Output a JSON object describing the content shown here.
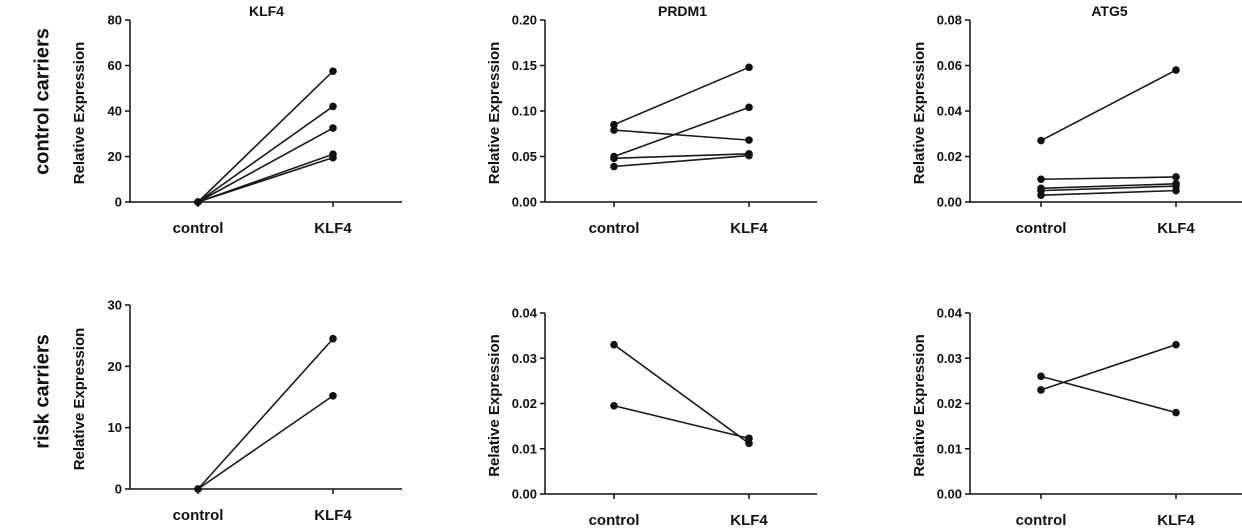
{
  "row_labels": [
    "control carriers",
    "risk carriers"
  ],
  "chart_data": [
    {
      "type": "line",
      "title": "KLF4",
      "xlabel": "",
      "ylabel": "Relative Expression",
      "categories": [
        "control",
        "KLF4"
      ],
      "ylim": [
        0,
        80
      ],
      "yticks": [
        "0",
        "20",
        "40",
        "60",
        "80"
      ],
      "series": [
        {
          "values": [
            0,
            57.5
          ]
        },
        {
          "values": [
            0,
            42
          ]
        },
        {
          "values": [
            0,
            32.5
          ]
        },
        {
          "values": [
            0,
            21
          ]
        },
        {
          "values": [
            0,
            19.5
          ]
        }
      ]
    },
    {
      "type": "line",
      "title": "PRDM1",
      "xlabel": "",
      "ylabel": "Relative Expression",
      "categories": [
        "control",
        "KLF4"
      ],
      "ylim": [
        0,
        0.2
      ],
      "yticks": [
        "0.00",
        "0.05",
        "0.10",
        "0.15",
        "0.20"
      ],
      "series": [
        {
          "values": [
            0.085,
            0.148
          ]
        },
        {
          "values": [
            0.079,
            0.068
          ]
        },
        {
          "values": [
            0.05,
            0.104
          ]
        },
        {
          "values": [
            0.048,
            0.053
          ]
        },
        {
          "values": [
            0.039,
            0.051
          ]
        }
      ]
    },
    {
      "type": "line",
      "title": "ATG5",
      "xlabel": "",
      "ylabel": "Relative Expression",
      "categories": [
        "control",
        "KLF4"
      ],
      "ylim": [
        0,
        0.08
      ],
      "yticks": [
        "0.00",
        "0.02",
        "0.04",
        "0.06",
        "0.08"
      ],
      "series": [
        {
          "values": [
            0.027,
            0.058
          ]
        },
        {
          "values": [
            0.01,
            0.011
          ]
        },
        {
          "values": [
            0.006,
            0.008
          ]
        },
        {
          "values": [
            0.005,
            0.007
          ]
        },
        {
          "values": [
            0.003,
            0.005
          ]
        }
      ]
    },
    {
      "type": "line",
      "title": "",
      "xlabel": "",
      "ylabel": "Relative Expression",
      "categories": [
        "control",
        "KLF4"
      ],
      "ylim": [
        0,
        30
      ],
      "yticks": [
        "0",
        "10",
        "20",
        "30"
      ],
      "series": [
        {
          "values": [
            0,
            24.5
          ]
        },
        {
          "values": [
            0,
            15.2
          ]
        }
      ]
    },
    {
      "type": "line",
      "title": "",
      "xlabel": "",
      "ylabel": "Relative Expression",
      "categories": [
        "control",
        "KLF4"
      ],
      "ylim": [
        0,
        0.04
      ],
      "yticks": [
        "0.00",
        "0.01",
        "0.02",
        "0.03",
        "0.04"
      ],
      "series": [
        {
          "values": [
            0.033,
            0.0112
          ]
        },
        {
          "values": [
            0.0195,
            0.0123
          ]
        }
      ]
    },
    {
      "type": "line",
      "title": "",
      "xlabel": "",
      "ylabel": "Relative Expression",
      "categories": [
        "control",
        "KLF4"
      ],
      "ylim": [
        0,
        0.04
      ],
      "yticks": [
        "0.00",
        "0.01",
        "0.02",
        "0.03",
        "0.04"
      ],
      "series": [
        {
          "values": [
            0.026,
            0.018
          ]
        },
        {
          "values": [
            0.023,
            0.033
          ]
        }
      ]
    }
  ]
}
